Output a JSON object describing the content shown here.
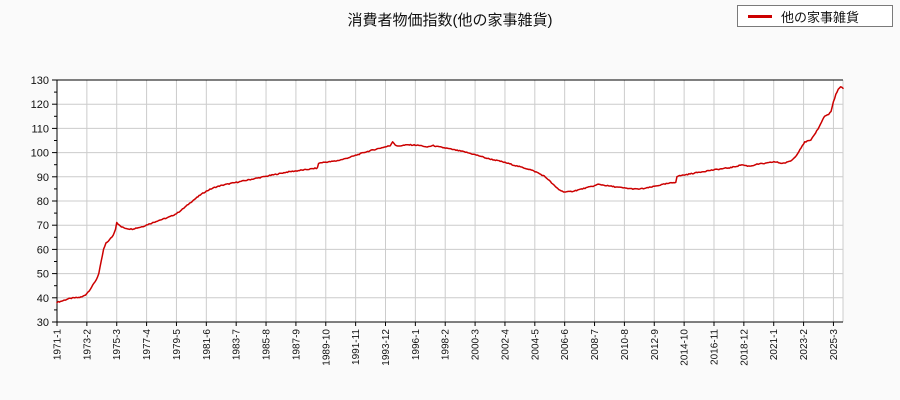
{
  "title": "消費者物価指数(他の家事雑貨)",
  "legend": {
    "label": "他の家事雑貨",
    "line_color": "#cc0000"
  },
  "colors": {
    "page_bg": "#fafafa",
    "plot_bg": "#ffffff",
    "grid": "#cccccc",
    "axis": "#000000",
    "line": "#cc0000",
    "text": "#111111"
  },
  "chart_data": {
    "type": "line",
    "title": "消費者物価指数(他の家事雑貨)",
    "series_name": "他の家事雑貨",
    "x_start": "1971-01",
    "x_end": "2025-11",
    "x_unit": "month",
    "total_months": 658,
    "x_tick_interval_months": 25,
    "x_tick_labels": [
      "1971-1",
      "1973-2",
      "1975-3",
      "1977-4",
      "1979-5",
      "1981-6",
      "1983-7",
      "1985-8",
      "1987-9",
      "1989-10",
      "1991-11",
      "1993-12",
      "1996-1",
      "1998-2",
      "2000-3",
      "2002-4",
      "2004-5",
      "2006-6",
      "2008-7",
      "2010-8",
      "2012-9",
      "2014-10",
      "2016-11",
      "2018-12",
      "2021-1",
      "2023-2",
      "2025-3"
    ],
    "ylim": [
      30,
      130
    ],
    "y_tick_interval": 10,
    "y_minor_tick_interval": 5,
    "y_tick_labels": [
      "30",
      "40",
      "50",
      "60",
      "70",
      "80",
      "90",
      "100",
      "110",
      "120",
      "130"
    ],
    "grid": true,
    "legend_position": "top-right",
    "noise_amplitude": 0.2,
    "anchors_month_value": [
      [
        0,
        38.2
      ],
      [
        3,
        38.5
      ],
      [
        6,
        39.0
      ],
      [
        9,
        39.5
      ],
      [
        12,
        39.8
      ],
      [
        15,
        40.0
      ],
      [
        18,
        40.1
      ],
      [
        21,
        40.4
      ],
      [
        24,
        41.3
      ],
      [
        27,
        43.0
      ],
      [
        30,
        45.2
      ],
      [
        33,
        47.6
      ],
      [
        35,
        50.0
      ],
      [
        37,
        55.0
      ],
      [
        39,
        60.0
      ],
      [
        41,
        62.5
      ],
      [
        44,
        64.0
      ],
      [
        47,
        65.8
      ],
      [
        49,
        68.5
      ],
      [
        50,
        71.2
      ],
      [
        52,
        70.0
      ],
      [
        54,
        69.3
      ],
      [
        57,
        68.8
      ],
      [
        60,
        68.5
      ],
      [
        63,
        68.4
      ],
      [
        66,
        68.8
      ],
      [
        69,
        69.1
      ],
      [
        72,
        69.5
      ],
      [
        76,
        70.3
      ],
      [
        80,
        71.0
      ],
      [
        84,
        71.8
      ],
      [
        88,
        72.4
      ],
      [
        92,
        73.0
      ],
      [
        96,
        73.8
      ],
      [
        100,
        74.8
      ],
      [
        104,
        76.2
      ],
      [
        108,
        77.8
      ],
      [
        112,
        79.5
      ],
      [
        116,
        81.0
      ],
      [
        120,
        82.5
      ],
      [
        124,
        83.8
      ],
      [
        128,
        84.8
      ],
      [
        132,
        85.6
      ],
      [
        136,
        86.2
      ],
      [
        140,
        86.7
      ],
      [
        144,
        87.1
      ],
      [
        148,
        87.5
      ],
      [
        152,
        87.9
      ],
      [
        156,
        88.3
      ],
      [
        160,
        88.7
      ],
      [
        164,
        89.1
      ],
      [
        168,
        89.5
      ],
      [
        172,
        89.9
      ],
      [
        176,
        90.3
      ],
      [
        180,
        90.7
      ],
      [
        184,
        91.1
      ],
      [
        188,
        91.5
      ],
      [
        192,
        91.9
      ],
      [
        196,
        92.2
      ],
      [
        200,
        92.4
      ],
      [
        204,
        92.7
      ],
      [
        208,
        92.9
      ],
      [
        212,
        93.2
      ],
      [
        216,
        93.5
      ],
      [
        218,
        93.6
      ],
      [
        219,
        95.6
      ],
      [
        222,
        95.9
      ],
      [
        228,
        96.2
      ],
      [
        234,
        96.6
      ],
      [
        240,
        97.3
      ],
      [
        246,
        98.2
      ],
      [
        252,
        99.2
      ],
      [
        258,
        100.2
      ],
      [
        264,
        101.0
      ],
      [
        270,
        101.8
      ],
      [
        276,
        102.5
      ],
      [
        279,
        102.9
      ],
      [
        281,
        104.6
      ],
      [
        283,
        103.3
      ],
      [
        285,
        102.6
      ],
      [
        288,
        102.9
      ],
      [
        294,
        103.2
      ],
      [
        300,
        103.1
      ],
      [
        306,
        102.8
      ],
      [
        309,
        102.2
      ],
      [
        312,
        102.6
      ],
      [
        315,
        102.9
      ],
      [
        318,
        102.5
      ],
      [
        324,
        102.0
      ],
      [
        330,
        101.4
      ],
      [
        336,
        100.8
      ],
      [
        342,
        100.2
      ],
      [
        348,
        99.4
      ],
      [
        354,
        98.6
      ],
      [
        360,
        97.6
      ],
      [
        366,
        97.0
      ],
      [
        372,
        96.3
      ],
      [
        378,
        95.5
      ],
      [
        384,
        94.6
      ],
      [
        390,
        93.8
      ],
      [
        396,
        93.0
      ],
      [
        402,
        91.8
      ],
      [
        408,
        90.2
      ],
      [
        411,
        89.0
      ],
      [
        414,
        87.5
      ],
      [
        417,
        86.0
      ],
      [
        420,
        84.8
      ],
      [
        423,
        84.0
      ],
      [
        426,
        83.7
      ],
      [
        430,
        83.9
      ],
      [
        434,
        84.3
      ],
      [
        438,
        84.8
      ],
      [
        442,
        85.3
      ],
      [
        446,
        85.8
      ],
      [
        450,
        86.3
      ],
      [
        453,
        86.9
      ],
      [
        456,
        86.7
      ],
      [
        462,
        86.2
      ],
      [
        468,
        85.8
      ],
      [
        474,
        85.4
      ],
      [
        480,
        85.1
      ],
      [
        486,
        84.9
      ],
      [
        492,
        85.2
      ],
      [
        498,
        85.8
      ],
      [
        504,
        86.5
      ],
      [
        510,
        87.1
      ],
      [
        516,
        87.6
      ],
      [
        518,
        87.8
      ],
      [
        519,
        90.2
      ],
      [
        522,
        90.5
      ],
      [
        528,
        91.0
      ],
      [
        534,
        91.6
      ],
      [
        540,
        92.1
      ],
      [
        546,
        92.6
      ],
      [
        552,
        93.0
      ],
      [
        558,
        93.4
      ],
      [
        564,
        93.8
      ],
      [
        570,
        94.5
      ],
      [
        573,
        95.0
      ],
      [
        576,
        94.7
      ],
      [
        579,
        94.4
      ],
      [
        582,
        94.6
      ],
      [
        585,
        95.1
      ],
      [
        588,
        95.3
      ],
      [
        594,
        95.6
      ],
      [
        600,
        96.2
      ],
      [
        603,
        96.0
      ],
      [
        606,
        95.6
      ],
      [
        609,
        95.7
      ],
      [
        612,
        96.1
      ],
      [
        615,
        96.8
      ],
      [
        618,
        98.2
      ],
      [
        621,
        100.5
      ],
      [
        624,
        103.0
      ],
      [
        626,
        104.3
      ],
      [
        628,
        104.7
      ],
      [
        631,
        105.0
      ],
      [
        633,
        106.5
      ],
      [
        636,
        109.0
      ],
      [
        639,
        111.5
      ],
      [
        641,
        113.8
      ],
      [
        643,
        115.2
      ],
      [
        646,
        115.8
      ],
      [
        648,
        117.0
      ],
      [
        650,
        121.0
      ],
      [
        652,
        124.0
      ],
      [
        654,
        126.0
      ],
      [
        656,
        127.2
      ],
      [
        657,
        127.0
      ],
      [
        658,
        126.4
      ]
    ]
  }
}
